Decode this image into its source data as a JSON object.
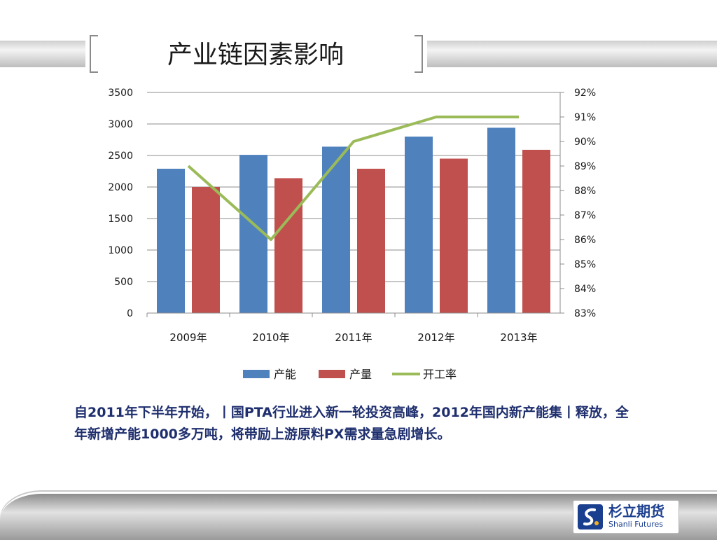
{
  "slide": {
    "title": "产业链因素影响",
    "description": "自2011年下半年开始，丨国PTA行业进入新一轮投资高峰，2012年国内新产能集丨释放，全年新增产能1000多万吨，将带励上游原料PX需求量急剧增长。"
  },
  "logo": {
    "name_cn": "杉立期货",
    "name_en": "Shanli Futures"
  },
  "colors": {
    "capacity": "#4f81bd",
    "output": "#c0504d",
    "rate": "#9bbb59",
    "grid": "#8c8c8c",
    "text": "#1a1a1a"
  },
  "chart_data": {
    "type": "bar",
    "categories": [
      "2009年",
      "2010年",
      "2011年",
      "2012年",
      "2013年"
    ],
    "series": [
      {
        "name": "产能",
        "type": "bar",
        "axis": "left",
        "values": [
          2290,
          2510,
          2640,
          2800,
          2940
        ]
      },
      {
        "name": "产量",
        "type": "bar",
        "axis": "left",
        "values": [
          2000,
          2140,
          2290,
          2450,
          2590
        ]
      },
      {
        "name": "开工率",
        "type": "line",
        "axis": "right",
        "values": [
          89,
          86,
          90,
          91,
          91
        ]
      }
    ],
    "ylim": [
      0,
      3500
    ],
    "yticks": [
      "0",
      "500",
      "1000",
      "1500",
      "2000",
      "2500",
      "3000",
      "3500"
    ],
    "y2lim": [
      83,
      92
    ],
    "y2ticks": [
      "83%",
      "84%",
      "85%",
      "86%",
      "87%",
      "88%",
      "89%",
      "90%",
      "91%",
      "92%"
    ],
    "grid": true,
    "legend_position": "bottom"
  }
}
